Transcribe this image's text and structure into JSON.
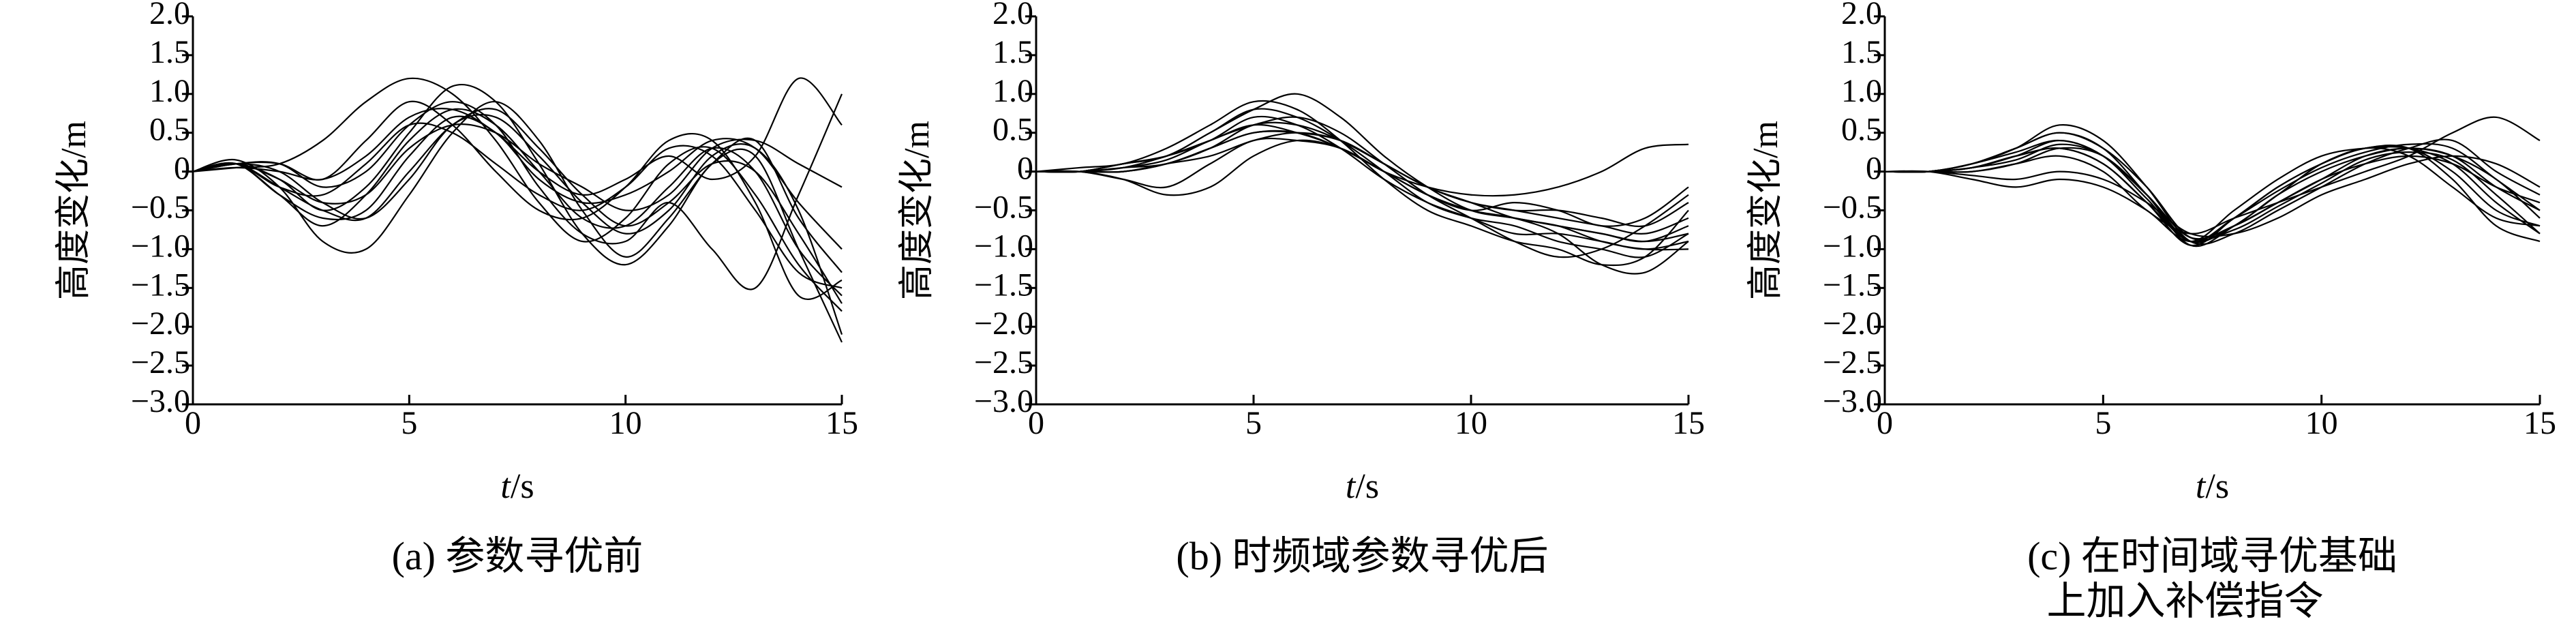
{
  "chart_data": [
    {
      "type": "line",
      "title": [
        "(a) 参数寻优前"
      ],
      "x_label": "t/s",
      "y_label": "高度变化/m",
      "x": [
        0,
        1,
        2,
        3,
        4,
        5,
        6,
        7,
        8,
        9,
        10,
        11,
        12,
        13,
        14,
        15
      ],
      "xlim": [
        0,
        15
      ],
      "xticks": [
        0,
        5,
        10,
        15
      ],
      "ylim": [
        -3,
        2
      ],
      "yticks": [
        {
          "value": 2,
          "label": "2.0"
        },
        1.5,
        {
          "value": 1,
          "label": "1.0"
        },
        0.5,
        0,
        {
          "value": -0.5,
          "label": "−0.5"
        },
        {
          "value": -1,
          "label": "−1.0"
        },
        {
          "value": -1.5,
          "label": "−1.5"
        },
        {
          "value": -2,
          "label": "−2.0"
        },
        {
          "value": -2.5,
          "label": "−2.5"
        },
        {
          "value": -3,
          "label": "−3.0"
        }
      ],
      "series": [
        {
          "color": "#000000",
          "values": [
            0,
            0.1,
            -0.3,
            -0.7,
            -0.3,
            0.4,
            0.8,
            0.6,
            0,
            -0.6,
            -0.7,
            -0.2,
            0.3,
            0,
            -1.0,
            -1.6
          ]
        },
        {
          "color": "#000000",
          "values": [
            0,
            0.1,
            0,
            -0.4,
            -0.6,
            -0.1,
            0.6,
            0.7,
            0.2,
            -0.4,
            -0.8,
            -0.5,
            0.2,
            0.3,
            -0.5,
            -2.1
          ]
        },
        {
          "color": "#000000",
          "values": [
            0,
            0.15,
            -0.2,
            -0.9,
            -1.0,
            -0.3,
            0.5,
            0.9,
            0.4,
            -0.5,
            -1.1,
            -0.6,
            0.1,
            0.4,
            -0.6,
            -1.3
          ]
        },
        {
          "color": "#000000",
          "values": [
            0,
            0.05,
            0.1,
            0.4,
            0.9,
            1.2,
            1.0,
            0.4,
            -0.4,
            -0.9,
            -0.6,
            0.1,
            0.3,
            -0.3,
            -1.2,
            -1.8
          ]
        },
        {
          "color": "#000000",
          "values": [
            0,
            0.1,
            -0.1,
            -0.5,
            -0.2,
            0.5,
            1.1,
            0.9,
            0.1,
            -0.8,
            -1.2,
            -0.7,
            0.1,
            0.2,
            -1.0,
            -2.2
          ]
        },
        {
          "color": "#000000",
          "values": [
            0,
            0.1,
            -0.2,
            -0.3,
            0.1,
            0.6,
            0.5,
            0.1,
            -0.3,
            -0.5,
            -0.2,
            0.3,
            0.2,
            -0.5,
            -1.3,
            -1.5
          ]
        },
        {
          "color": "#000000",
          "values": [
            0,
            0.1,
            0.1,
            -0.2,
            0.0,
            0.6,
            0.9,
            0.6,
            -0.2,
            -0.8,
            -0.9,
            -0.4,
            -1.0,
            -1.5,
            -0.3,
            1.0
          ]
        },
        {
          "color": "#000000",
          "values": [
            0,
            0.05,
            0.0,
            -0.1,
            0.2,
            0.7,
            0.8,
            0.5,
            0,
            -0.3,
            -0.1,
            0.2,
            -0.1,
            0.2,
            1.2,
            0.6
          ]
        },
        {
          "color": "#000000",
          "values": [
            0,
            0.1,
            -0.3,
            -0.6,
            -0.5,
            0.2,
            0.7,
            0.5,
            -0.1,
            -0.4,
            -0.3,
            0,
            0.4,
            0.3,
            -0.4,
            -1.0
          ]
        },
        {
          "color": "#000000",
          "values": [
            0,
            0.1,
            0.1,
            -0.1,
            0.4,
            0.9,
            0.6,
            0,
            -0.5,
            -0.6,
            -0.2,
            0.4,
            0.4,
            -0.4,
            -1.6,
            -1.4
          ]
        },
        {
          "color": "#000000",
          "values": [
            0,
            0.1,
            -0.1,
            -0.4,
            -0.3,
            0.3,
            0.6,
            0.5,
            0.1,
            -0.2,
            -0.5,
            -0.3,
            0.3,
            0.4,
            0.1,
            -0.2
          ]
        },
        {
          "color": "#000000",
          "values": [
            0,
            0.1,
            -0.2,
            -0.5,
            -0.6,
            0,
            0.6,
            0.8,
            0.3,
            -0.3,
            -0.7,
            -0.4,
            0.1,
            0,
            -0.8,
            -1.7
          ]
        }
      ]
    },
    {
      "type": "line",
      "title": [
        "(b) 时频域参数寻优后"
      ],
      "x_label": "t/s",
      "y_label": "高度变化/m",
      "x": [
        0,
        1,
        2,
        3,
        4,
        5,
        6,
        7,
        8,
        9,
        10,
        11,
        12,
        13,
        14,
        15
      ],
      "xlim": [
        0,
        15
      ],
      "xticks": [
        0,
        5,
        10,
        15
      ],
      "ylim": [
        -3,
        2
      ],
      "yticks": [
        {
          "value": 2,
          "label": "2.0"
        },
        1.5,
        {
          "value": 1,
          "label": "1.0"
        },
        0.5,
        0,
        {
          "value": -0.5,
          "label": "−0.5"
        },
        {
          "value": -1,
          "label": "−1.0"
        },
        {
          "value": -1.5,
          "label": "−1.5"
        },
        {
          "value": -2,
          "label": "−2.0"
        },
        {
          "value": -2.5,
          "label": "−2.5"
        },
        {
          "value": -3,
          "label": "−3.0"
        }
      ],
      "series": [
        {
          "color": "#000000",
          "values": [
            0,
            0,
            0.05,
            0.1,
            0.3,
            0.5,
            0.5,
            0.3,
            0,
            -0.3,
            -0.5,
            -0.6,
            -0.7,
            -0.8,
            -0.9,
            -0.7
          ]
        },
        {
          "color": "#000000",
          "values": [
            0,
            0,
            0.1,
            0.2,
            0.5,
            0.8,
            0.7,
            0.4,
            0,
            -0.4,
            -0.6,
            -0.7,
            -0.9,
            -1.0,
            -1.1,
            -0.8
          ]
        },
        {
          "color": "#000000",
          "values": [
            0,
            0,
            -0.1,
            -0.2,
            0.1,
            0.4,
            0.4,
            0.3,
            0,
            -0.2,
            -0.3,
            -0.3,
            -0.2,
            0,
            0.3,
            0.35
          ]
        },
        {
          "color": "#000000",
          "values": [
            0,
            0.05,
            0.1,
            0.3,
            0.6,
            0.9,
            0.8,
            0.4,
            -0.1,
            -0.5,
            -0.7,
            -0.9,
            -1.0,
            -1.2,
            -1.1,
            -0.5
          ]
        },
        {
          "color": "#000000",
          "values": [
            0,
            0,
            0,
            0.1,
            0.3,
            0.6,
            0.6,
            0.4,
            0.1,
            -0.2,
            -0.4,
            -0.5,
            -0.6,
            -0.7,
            -0.8,
            -0.6
          ]
        },
        {
          "color": "#000000",
          "values": [
            0,
            0,
            -0.1,
            -0.3,
            -0.2,
            0.2,
            0.4,
            0.3,
            0,
            -0.3,
            -0.5,
            -0.6,
            -0.8,
            -1.2,
            -1.3,
            -0.9
          ]
        },
        {
          "color": "#000000",
          "values": [
            0,
            0,
            0.05,
            0.2,
            0.4,
            0.6,
            0.5,
            0.3,
            0,
            -0.3,
            -0.5,
            -0.4,
            -0.5,
            -0.7,
            -0.6,
            -0.2
          ]
        },
        {
          "color": "#000000",
          "values": [
            0,
            0,
            0.1,
            0.2,
            0.4,
            0.7,
            0.6,
            0.3,
            -0.1,
            -0.4,
            -0.6,
            -0.8,
            -0.8,
            -0.9,
            -1.0,
            -0.9
          ]
        },
        {
          "color": "#000000",
          "values": [
            0,
            0,
            0,
            0.1,
            0.2,
            0.4,
            0.5,
            0.4,
            0.1,
            -0.2,
            -0.4,
            -0.5,
            -0.5,
            -0.6,
            -0.7,
            -0.4
          ]
        },
        {
          "color": "#000000",
          "values": [
            0,
            0,
            0.05,
            0.15,
            0.4,
            0.6,
            0.7,
            0.5,
            0.1,
            -0.3,
            -0.6,
            -0.9,
            -1.1,
            -1.0,
            -0.7,
            -0.3
          ]
        },
        {
          "color": "#000000",
          "values": [
            0,
            0,
            0.1,
            0.2,
            0.5,
            0.8,
            1.0,
            0.7,
            0.2,
            -0.2,
            -0.5,
            -0.6,
            -0.7,
            -0.8,
            -0.9,
            -0.8
          ]
        },
        {
          "color": "#000000",
          "values": [
            0,
            0,
            0,
            0.1,
            0.3,
            0.5,
            0.5,
            0.4,
            0.1,
            -0.2,
            -0.4,
            -0.6,
            -0.7,
            -0.9,
            -1.0,
            -1.0
          ]
        }
      ]
    },
    {
      "type": "line",
      "title": [
        "(c) 在时间域寻优基础",
        "上加入补偿指令"
      ],
      "x_label": "t/s",
      "y_label": "高度变化/m",
      "x": [
        0,
        1,
        2,
        3,
        4,
        5,
        6,
        7,
        8,
        9,
        10,
        11,
        12,
        13,
        14,
        15
      ],
      "xlim": [
        0,
        15
      ],
      "xticks": [
        0,
        5,
        10,
        15
      ],
      "ylim": [
        -3,
        2
      ],
      "yticks": [
        {
          "value": 2,
          "label": "2.0"
        },
        1.5,
        {
          "value": 1,
          "label": "1.0"
        },
        0.5,
        0,
        {
          "value": -0.5,
          "label": "−0.5"
        },
        {
          "value": -1,
          "label": "−1.0"
        },
        {
          "value": -1.5,
          "label": "−1.5"
        },
        {
          "value": -2,
          "label": "−2.0"
        },
        {
          "value": -2.5,
          "label": "−2.5"
        },
        {
          "value": -3,
          "label": "−3.0"
        }
      ],
      "series": [
        {
          "color": "#000000",
          "values": [
            0,
            0,
            0.05,
            0.2,
            0.3,
            0.1,
            -0.4,
            -0.9,
            -0.7,
            -0.3,
            0,
            0.2,
            0.3,
            0.2,
            -0.2,
            -0.5
          ]
        },
        {
          "color": "#000000",
          "values": [
            0,
            0,
            0.1,
            0.3,
            0.5,
            0.3,
            -0.3,
            -0.9,
            -0.6,
            -0.2,
            0.1,
            0.3,
            0.3,
            0,
            -0.5,
            -0.7
          ]
        },
        {
          "color": "#000000",
          "values": [
            0,
            0,
            0,
            0.1,
            0.2,
            0,
            -0.5,
            -0.8,
            -0.6,
            -0.4,
            -0.2,
            0,
            0.2,
            0.5,
            0.7,
            0.4
          ]
        },
        {
          "color": "#000000",
          "values": [
            0,
            0,
            -0.1,
            -0.2,
            -0.1,
            -0.2,
            -0.5,
            -0.9,
            -0.5,
            -0.1,
            0.2,
            0.3,
            0.3,
            0.1,
            -0.4,
            -0.8
          ]
        },
        {
          "color": "#000000",
          "values": [
            0,
            0,
            0.05,
            0.2,
            0.4,
            0.2,
            -0.3,
            -0.85,
            -0.7,
            -0.4,
            -0.1,
            0.1,
            0.2,
            0.1,
            -0.2,
            -0.4
          ]
        },
        {
          "color": "#000000",
          "values": [
            0,
            0,
            0.1,
            0.3,
            0.6,
            0.4,
            -0.2,
            -0.9,
            -0.8,
            -0.5,
            -0.2,
            0.1,
            0.3,
            0.4,
            0,
            -0.3
          ]
        },
        {
          "color": "#000000",
          "values": [
            0,
            0,
            0,
            0.1,
            0.3,
            0.2,
            -0.3,
            -0.95,
            -0.7,
            -0.3,
            0.1,
            0.3,
            0.3,
            -0.1,
            -0.7,
            -0.9
          ]
        },
        {
          "color": "#000000",
          "values": [
            0,
            0,
            0.05,
            0.15,
            0.35,
            0.2,
            -0.3,
            -0.9,
            -0.7,
            -0.4,
            -0.1,
            0.2,
            0.3,
            0.2,
            -0.1,
            -0.6
          ]
        },
        {
          "color": "#000000",
          "values": [
            0,
            0,
            -0.05,
            -0.1,
            0,
            -0.1,
            -0.4,
            -0.8,
            -0.8,
            -0.6,
            -0.3,
            -0.1,
            0.1,
            0.2,
            0.1,
            -0.2
          ]
        },
        {
          "color": "#000000",
          "values": [
            0,
            0,
            0.1,
            0.25,
            0.4,
            0.2,
            -0.35,
            -0.9,
            -0.6,
            -0.25,
            0.05,
            0.25,
            0.35,
            0.3,
            -0.1,
            -0.5
          ]
        },
        {
          "color": "#000000",
          "values": [
            0,
            0,
            0.05,
            0.2,
            0.3,
            0.1,
            -0.4,
            -0.95,
            -0.6,
            -0.2,
            0.1,
            0.3,
            0.2,
            -0.2,
            -0.6,
            -0.7
          ]
        },
        {
          "color": "#000000",
          "values": [
            0,
            0,
            0.1,
            0.3,
            0.5,
            0.3,
            -0.2,
            -0.85,
            -0.75,
            -0.45,
            -0.15,
            0.15,
            0.25,
            0.15,
            -0.3,
            -0.8
          ]
        }
      ]
    }
  ]
}
